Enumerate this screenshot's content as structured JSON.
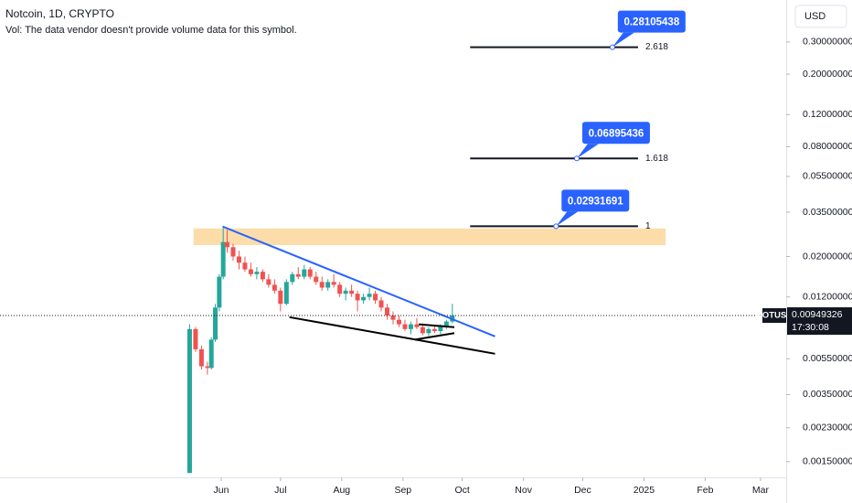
{
  "chart_data": {
    "type": "candlestick",
    "title": "Notcoin, 1D, CRYPTO",
    "subtitle": "Vol: The data vendor doesn't provide volume data for this symbol.",
    "currency": "USD",
    "symbol": "NOTUSD",
    "last_price": 0.00949326,
    "countdown": "17:30:08",
    "log_scale": true,
    "up_color": "#26a69a",
    "down_color": "#ef5350",
    "candles": {
      "x": [
        0,
        3,
        6,
        9,
        11,
        13,
        15,
        17,
        19,
        22,
        25,
        28,
        31,
        34,
        37,
        40,
        43,
        46,
        49,
        52,
        55,
        58,
        61,
        64,
        67,
        70,
        73,
        76,
        79,
        82,
        85,
        88,
        91,
        94,
        97,
        100,
        103,
        106,
        109,
        112,
        115,
        118,
        121,
        124,
        127,
        130,
        133
      ],
      "open": [
        0.0013,
        0.008,
        0.0062,
        0.005,
        0.0049,
        0.007,
        0.0105,
        0.0155,
        0.024,
        0.0225,
        0.02,
        0.0185,
        0.017,
        0.016,
        0.0165,
        0.015,
        0.014,
        0.013,
        0.011,
        0.0145,
        0.016,
        0.0155,
        0.017,
        0.0155,
        0.0145,
        0.0135,
        0.0145,
        0.014,
        0.0125,
        0.013,
        0.0125,
        0.0115,
        0.012,
        0.0125,
        0.0115,
        0.0105,
        0.0095,
        0.009,
        0.0085,
        0.008,
        0.0085,
        0.0082,
        0.0076,
        0.008,
        0.0078,
        0.0083,
        0.0088
      ],
      "high": [
        0.0085,
        0.0082,
        0.0065,
        0.0053,
        0.0072,
        0.011,
        0.016,
        0.029,
        0.028,
        0.0235,
        0.0215,
        0.02,
        0.0185,
        0.0175,
        0.017,
        0.016,
        0.015,
        0.0135,
        0.015,
        0.0165,
        0.0175,
        0.018,
        0.0175,
        0.0165,
        0.0155,
        0.015,
        0.016,
        0.0145,
        0.0135,
        0.014,
        0.013,
        0.0125,
        0.0135,
        0.013,
        0.012,
        0.011,
        0.01,
        0.0095,
        0.009,
        0.0088,
        0.0092,
        0.0086,
        0.0082,
        0.0084,
        0.0085,
        0.009,
        0.011
      ],
      "low": [
        0.0013,
        0.006,
        0.0048,
        0.0045,
        0.0048,
        0.0068,
        0.01,
        0.015,
        0.021,
        0.019,
        0.017,
        0.0165,
        0.0155,
        0.015,
        0.0145,
        0.0135,
        0.0125,
        0.01,
        0.0108,
        0.014,
        0.015,
        0.015,
        0.015,
        0.014,
        0.013,
        0.013,
        0.0135,
        0.012,
        0.0115,
        0.012,
        0.01,
        0.011,
        0.0115,
        0.011,
        0.01,
        0.009,
        0.0085,
        0.0082,
        0.0078,
        0.0075,
        0.008,
        0.0074,
        0.0073,
        0.0076,
        0.0075,
        0.008,
        0.0086
      ],
      "close": [
        0.008,
        0.0062,
        0.005,
        0.0049,
        0.007,
        0.0105,
        0.0155,
        0.024,
        0.0225,
        0.02,
        0.0185,
        0.017,
        0.016,
        0.0165,
        0.015,
        0.014,
        0.013,
        0.011,
        0.0145,
        0.016,
        0.0155,
        0.017,
        0.0155,
        0.0145,
        0.0135,
        0.0145,
        0.014,
        0.0125,
        0.013,
        0.0125,
        0.0115,
        0.012,
        0.0125,
        0.0115,
        0.0105,
        0.0095,
        0.009,
        0.0085,
        0.008,
        0.0085,
        0.0082,
        0.0076,
        0.008,
        0.0078,
        0.0083,
        0.0088,
        0.0095
      ]
    },
    "xlim": [
      -96,
      302
    ],
    "xticks": [
      {
        "value": 16,
        "label": "Jun"
      },
      {
        "value": 46,
        "label": "Jul"
      },
      {
        "value": 77,
        "label": "Aug"
      },
      {
        "value": 108,
        "label": "Sep"
      },
      {
        "value": 138,
        "label": "Oct"
      },
      {
        "value": 169,
        "label": "Nov"
      },
      {
        "value": 199,
        "label": "Dec"
      },
      {
        "value": 230,
        "label": "2025"
      },
      {
        "value": 261,
        "label": "Feb"
      },
      {
        "value": 289,
        "label": "Mar"
      }
    ],
    "ylim": [
      0.00123,
      0.51
    ],
    "yticks": [
      {
        "value": 0.3,
        "label": "0.30000000"
      },
      {
        "value": 0.2,
        "label": "0.20000000"
      },
      {
        "value": 0.12,
        "label": "0.12000000"
      },
      {
        "value": 0.08,
        "label": "0.08000000"
      },
      {
        "value": 0.055,
        "label": "0.05500000"
      },
      {
        "value": 0.035,
        "label": "0.03500000"
      },
      {
        "value": 0.02,
        "label": "0.02000000"
      },
      {
        "value": 0.012,
        "label": "0.01200000"
      },
      {
        "value": 0.0055,
        "label": "0.00550000"
      },
      {
        "value": 0.0035,
        "label": "0.00350000"
      },
      {
        "value": 0.0023,
        "label": "0.00230000"
      },
      {
        "value": 0.0015,
        "label": "0.00150000"
      }
    ],
    "zone": {
      "x": [
        2,
        241
      ],
      "y": [
        0.0231,
        0.0285
      ],
      "color": "#fcd79a"
    },
    "fib_levels": [
      {
        "ratio": 2.618,
        "value": 0.28105438,
        "x": [
          142,
          227
        ],
        "anchor_x": 214
      },
      {
        "ratio": 1.618,
        "value": 0.06895436,
        "x": [
          142,
          227
        ],
        "anchor_x": 196
      },
      {
        "ratio": 1,
        "value": 0.02931691,
        "x": [
          142,
          227
        ],
        "anchor_x": 185.5
      }
    ],
    "trendlines": [
      {
        "color": "#2962ff",
        "x": [
          16.7,
          154.6
        ],
        "y": [
          0.0292,
          0.0073
        ]
      },
      {
        "color": "#000000",
        "x": [
          50.5,
          154.6
        ],
        "y": [
          0.0093,
          0.00586
        ]
      },
      {
        "color": "#000000",
        "x": [
          116,
          134
        ],
        "y": [
          0.0085,
          0.0082
        ]
      },
      {
        "color": "#000000",
        "x": [
          114,
          134
        ],
        "y": [
          0.007,
          0.0076
        ]
      }
    ]
  }
}
